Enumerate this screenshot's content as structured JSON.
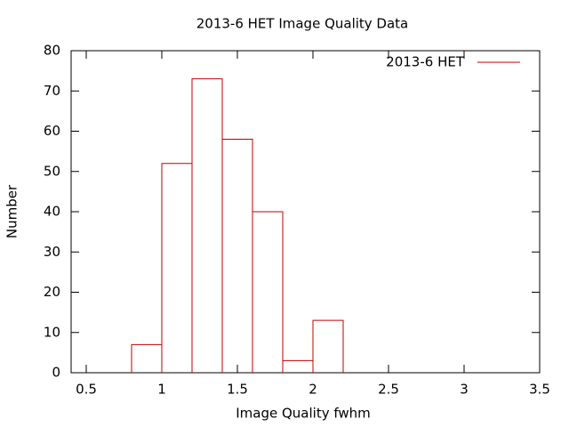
{
  "chart_data": {
    "type": "histogram",
    "title": "2013-6 HET Image Quality Data",
    "xlabel": "Image Quality fwhm",
    "ylabel": "Number",
    "bins": [
      0.8,
      1.0,
      1.2,
      1.4,
      1.6,
      1.8,
      2.0,
      2.2
    ],
    "series": [
      {
        "name": "2013-6 HET",
        "color": "#c00000",
        "values": [
          7,
          52,
          73,
          58,
          40,
          3,
          13
        ]
      }
    ],
    "xlim": [
      0.4,
      3.5
    ],
    "ylim": [
      0,
      80
    ],
    "xticks": [
      0.5,
      1,
      1.5,
      2,
      2.5,
      3,
      3.5
    ],
    "yticks": [
      0,
      10,
      20,
      30,
      40,
      50,
      60,
      70,
      80
    ],
    "legend": "top-right"
  }
}
